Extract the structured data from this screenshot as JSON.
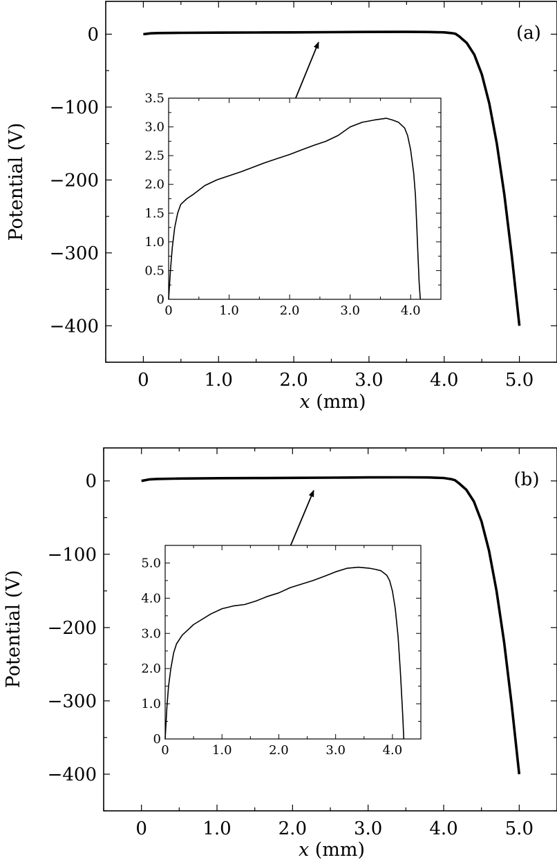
{
  "chart_data": [
    {
      "type": "line",
      "panel_label": "(a)",
      "xlabel_var": "x",
      "xlabel_unit": " (mm)",
      "ylabel": "Potential (V)",
      "xlim": [
        -0.5,
        5.5
      ],
      "ylim": [
        -450,
        45
      ],
      "xticks": [
        0,
        1.0,
        2.0,
        3.0,
        4.0,
        5.0
      ],
      "xtick_labels": [
        "0",
        "1.0",
        "2.0",
        "3.0",
        "4.0",
        "5.0"
      ],
      "yticks": [
        0,
        -100,
        -200,
        -300,
        -400
      ],
      "ytick_labels": [
        "0",
        "−100",
        "−200",
        "−300",
        "−400"
      ],
      "series": [
        {
          "x": [
            0,
            0.1,
            0.2,
            0.5,
            1.0,
            1.5,
            2.0,
            2.5,
            3.0,
            3.5,
            3.8,
            4.0,
            4.1,
            4.15,
            4.2,
            4.3,
            4.4,
            4.5,
            4.6,
            4.7,
            4.8,
            4.9,
            5.0
          ],
          "y": [
            0,
            1.2,
            1.6,
            1.85,
            2.1,
            2.35,
            2.55,
            2.8,
            3.05,
            3.15,
            3.0,
            2.5,
            1.5,
            0.5,
            -3,
            -12,
            -28,
            -55,
            -95,
            -150,
            -220,
            -305,
            -400
          ]
        }
      ],
      "arrow": {
        "from": [
          1.83,
          -137
        ],
        "to": [
          2.33,
          -11
        ]
      },
      "inset": {
        "xlim": [
          0,
          4.5
        ],
        "ylim": [
          0,
          3.5
        ],
        "xticks": [
          0,
          1.0,
          2.0,
          3.0,
          4.0
        ],
        "xtick_labels": [
          "0",
          "1.0",
          "2.0",
          "3.0",
          "4.0"
        ],
        "yticks": [
          0,
          0.5,
          1.0,
          1.5,
          2.0,
          2.5,
          3.0,
          3.5
        ],
        "ytick_labels": [
          "0",
          "0.5",
          "1.0",
          "1.5",
          "2.0",
          "2.5",
          "3.0",
          "3.5"
        ],
        "series": [
          {
            "x": [
              0,
              0.03,
              0.06,
              0.1,
              0.15,
              0.2,
              0.3,
              0.4,
              0.5,
              0.6,
              0.8,
              1.0,
              1.2,
              1.4,
              1.6,
              1.8,
              2.0,
              2.2,
              2.4,
              2.6,
              2.8,
              3.0,
              3.2,
              3.4,
              3.6,
              3.7,
              3.8,
              3.9,
              3.95,
              4.0,
              4.05,
              4.08,
              4.1,
              4.12,
              4.14,
              4.16
            ],
            "y": [
              0,
              0.5,
              0.9,
              1.25,
              1.5,
              1.65,
              1.75,
              1.82,
              1.9,
              1.98,
              2.08,
              2.15,
              2.22,
              2.3,
              2.38,
              2.45,
              2.52,
              2.6,
              2.68,
              2.75,
              2.85,
              3.0,
              3.08,
              3.12,
              3.15,
              3.12,
              3.08,
              2.98,
              2.85,
              2.6,
              2.2,
              1.8,
              1.3,
              0.8,
              0.3,
              0
            ]
          }
        ]
      }
    },
    {
      "type": "line",
      "panel_label": "(b)",
      "xlabel_var": "x",
      "xlabel_unit": " (mm)",
      "ylabel": "Potential (V)",
      "xlim": [
        -0.5,
        5.5
      ],
      "ylim": [
        -450,
        45
      ],
      "xticks": [
        0,
        1.0,
        2.0,
        3.0,
        4.0,
        5.0
      ],
      "xtick_labels": [
        "0",
        "1.0",
        "2.0",
        "3.0",
        "4.0",
        "5.0"
      ],
      "yticks": [
        0,
        -100,
        -200,
        -300,
        -400
      ],
      "ytick_labels": [
        "0",
        "−100",
        "−200",
        "−300",
        "−400"
      ],
      "series": [
        {
          "x": [
            0,
            0.1,
            0.2,
            0.5,
            1.0,
            1.5,
            2.0,
            2.5,
            3.0,
            3.5,
            3.8,
            4.0,
            4.1,
            4.15,
            4.2,
            4.3,
            4.4,
            4.5,
            4.6,
            4.7,
            4.8,
            4.9,
            5.0
          ],
          "y": [
            0,
            2.0,
            2.7,
            3.2,
            3.7,
            3.9,
            4.2,
            4.5,
            4.8,
            4.9,
            4.7,
            4.0,
            2.5,
            1.0,
            -3,
            -12,
            -28,
            -55,
            -95,
            -150,
            -220,
            -305,
            -400
          ]
        }
      ],
      "arrow": {
        "from": [
          1.73,
          -148
        ],
        "to": [
          2.28,
          -13
        ]
      },
      "inset": {
        "xlim": [
          0,
          4.5
        ],
        "ylim": [
          0,
          5.5
        ],
        "xticks": [
          0,
          1.0,
          2.0,
          3.0,
          4.0
        ],
        "xtick_labels": [
          "0",
          "1.0",
          "2.0",
          "3.0",
          "4.0"
        ],
        "yticks": [
          0,
          1.0,
          2.0,
          3.0,
          4.0,
          5.0
        ],
        "ytick_labels": [
          "0",
          "1.0",
          "2.0",
          "3.0",
          "4.0",
          "5.0"
        ],
        "series": [
          {
            "x": [
              0,
              0.03,
              0.06,
              0.1,
              0.15,
              0.2,
              0.3,
              0.4,
              0.5,
              0.6,
              0.8,
              1.0,
              1.2,
              1.4,
              1.6,
              1.8,
              2.0,
              2.2,
              2.4,
              2.6,
              2.8,
              3.0,
              3.2,
              3.4,
              3.6,
              3.7,
              3.8,
              3.9,
              3.95,
              4.0,
              4.05,
              4.1,
              4.14,
              4.18,
              4.2
            ],
            "y": [
              0,
              0.9,
              1.5,
              2.0,
              2.45,
              2.7,
              2.95,
              3.1,
              3.25,
              3.35,
              3.55,
              3.7,
              3.78,
              3.82,
              3.92,
              4.05,
              4.15,
              4.3,
              4.4,
              4.5,
              4.62,
              4.75,
              4.85,
              4.88,
              4.85,
              4.82,
              4.78,
              4.65,
              4.5,
              4.2,
              3.7,
              2.9,
              1.9,
              0.7,
              0
            ]
          }
        ]
      }
    }
  ]
}
